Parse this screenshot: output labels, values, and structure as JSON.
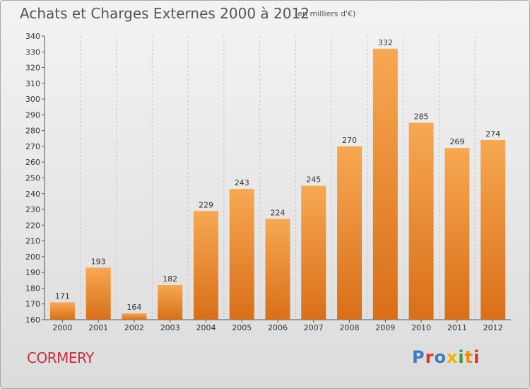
{
  "header": {
    "title": "Achats et Charges Externes 2000 à 2012",
    "subtitle": "(en milliers d'€)"
  },
  "footer": {
    "commune": "CORMERY",
    "logo_text": "Proxiti",
    "logo_colors": [
      "#3a7ebf",
      "#e2302c",
      "#3a7ebf",
      "#f0b400",
      "#3a9b3a",
      "#f08c00",
      "#e2302c"
    ]
  },
  "colors": {
    "bar_light": "#f7a852",
    "bar_dark": "#d96f18",
    "axis": "#555555",
    "grid": "#c4c4c4"
  },
  "chart_data": {
    "type": "bar",
    "title": "Achats et Charges Externes 2000 à 2012",
    "subtitle": "(en milliers d'€)",
    "categories": [
      "2000",
      "2001",
      "2002",
      "2003",
      "2004",
      "2005",
      "2006",
      "2007",
      "2008",
      "2009",
      "2010",
      "2011",
      "2012"
    ],
    "values": [
      171,
      193,
      164,
      182,
      229,
      243,
      224,
      245,
      270,
      332,
      285,
      269,
      274
    ],
    "ylim": [
      160,
      340
    ],
    "yticks": [
      160,
      170,
      180,
      190,
      200,
      210,
      220,
      230,
      240,
      250,
      260,
      270,
      280,
      290,
      300,
      310,
      320,
      330,
      340
    ],
    "grid": "vertical dashed",
    "data_labels": true
  }
}
